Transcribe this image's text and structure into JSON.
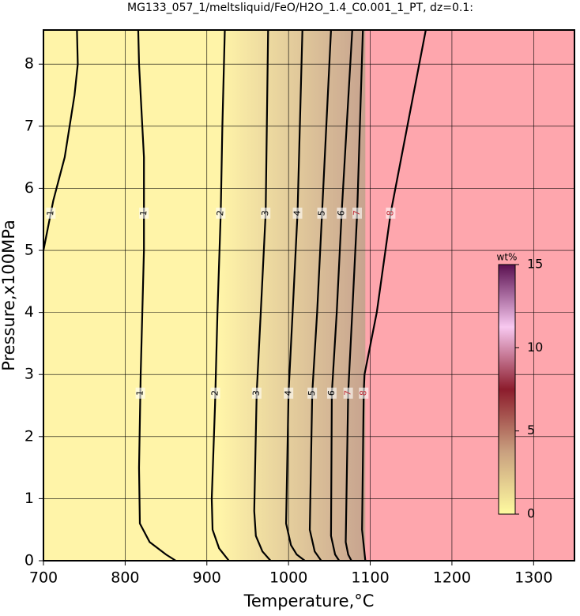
{
  "chart_data": {
    "type": "contour",
    "title": "MG133_057_1/meltsliquid/FeO/H2O_1.4_C0.001_1_PT, dz=0.1:",
    "x_label": "Temperature,°C",
    "y_label": "Pressure,x100MPa",
    "xlim": [
      700,
      1350
    ],
    "xticks": [
      700,
      800,
      900,
      1000,
      1100,
      1200,
      1300
    ],
    "ylim": [
      0,
      8.55
    ],
    "yticks": [
      0,
      1,
      2,
      3,
      4,
      5,
      6,
      7,
      8
    ],
    "grid": true,
    "low_color": "#fff4a8",
    "mid_color": "#c7a38f",
    "high_color": "#fea6ad",
    "contours": [
      {
        "level": 1,
        "x": [
          741,
          742,
          738,
          726,
          712,
          700
        ],
        "y": [
          8.55,
          8,
          7.5,
          6.5,
          5.8,
          5.0
        ]
      },
      {
        "level": 1,
        "x": [
          816,
          817,
          823,
          823,
          819,
          817,
          818,
          830,
          850,
          862
        ],
        "y": [
          8.55,
          8,
          6.5,
          5,
          3,
          1.5,
          0.6,
          0.3,
          0.1,
          0
        ]
      },
      {
        "level": 2,
        "x": [
          922,
          919,
          917,
          913,
          910,
          906,
          907,
          915,
          927
        ],
        "y": [
          8.55,
          7,
          5.6,
          4,
          2.5,
          1,
          0.5,
          0.2,
          0
        ]
      },
      {
        "level": 3,
        "x": [
          975,
          972,
          966,
          961,
          958,
          960,
          968,
          978
        ],
        "y": [
          8.55,
          5.6,
          4,
          2.7,
          0.8,
          0.4,
          0.15,
          0
        ]
      },
      {
        "level": 4,
        "x": [
          1017,
          1011,
          1005,
          1000,
          997,
          1003,
          1010,
          1020
        ],
        "y": [
          8.55,
          5.6,
          4,
          2.7,
          0.6,
          0.25,
          0.1,
          0
        ]
      },
      {
        "level": 5,
        "x": [
          1052,
          1041,
          1035,
          1029,
          1026,
          1032,
          1040
        ],
        "y": [
          8.55,
          5.6,
          4,
          2.7,
          0.5,
          0.15,
          0
        ]
      },
      {
        "level": 6,
        "x": [
          1078,
          1065,
          1059,
          1053,
          1052,
          1057,
          1062
        ],
        "y": [
          8.55,
          5.6,
          4,
          2.7,
          0.4,
          0.1,
          0
        ]
      },
      {
        "level": 7,
        "x": [
          1091,
          1084,
          1078,
          1073,
          1070,
          1073,
          1077
        ],
        "y": [
          8.55,
          5.6,
          4,
          2.7,
          0.3,
          0.1,
          0
        ]
      },
      {
        "level": 8,
        "x": [
          1168,
          1125,
          1108,
          1093,
          1092,
          1090,
          1094
        ],
        "y": [
          8.55,
          5.6,
          4,
          3,
          2.7,
          0.5,
          0
        ]
      }
    ],
    "colorbar": {
      "label": "wt%",
      "lim": [
        0,
        15
      ],
      "ticks": [
        0,
        5,
        10,
        15
      ],
      "colors": [
        "#fffba0",
        "#c9a07f",
        "#8c1c2c",
        "#f8c8f0",
        "#5a1050"
      ]
    }
  }
}
